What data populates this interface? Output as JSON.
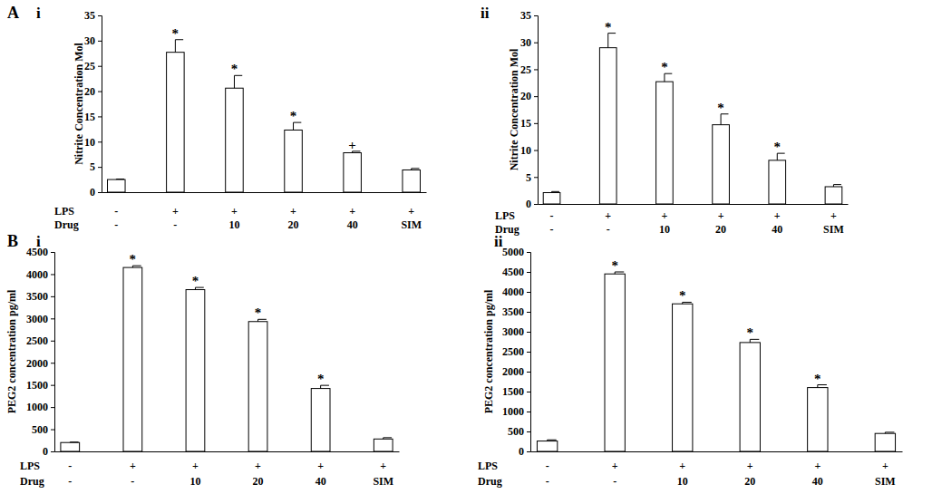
{
  "chart_data": [
    {
      "type": "bar",
      "panel_label": "A",
      "title": "i",
      "ylabel": "Nitrite Concentration Mol",
      "color": "#ffffff",
      "values": [
        2.5,
        27.7,
        20.6,
        12.3,
        7.8,
        4.4
      ],
      "errors": [
        0.1,
        2.5,
        2.5,
        1.5,
        0.3,
        0.3
      ],
      "significance": [
        null,
        "*",
        "*",
        "*",
        "+",
        null
      ],
      "condition_rows": [
        {
          "name": "LPS",
          "labels": [
            "-",
            "+",
            "+",
            "+",
            "+",
            "+"
          ]
        },
        {
          "name": "Drug",
          "labels": [
            "-",
            "-",
            "10",
            "20",
            "40",
            "SIM"
          ]
        }
      ],
      "ylim": [
        0,
        35
      ],
      "yticks": [
        0,
        5,
        10,
        15,
        20,
        25,
        30,
        35
      ]
    },
    {
      "type": "bar",
      "title": "ii",
      "ylabel": "Nitrite Concentration Mol",
      "color": "#ffffff",
      "values": [
        2.1,
        29.0,
        22.7,
        14.7,
        8.1,
        3.2
      ],
      "errors": [
        0.2,
        2.7,
        1.5,
        2.0,
        1.3,
        0.4
      ],
      "significance": [
        null,
        "*",
        "*",
        "*",
        "*",
        null
      ],
      "condition_rows": [
        {
          "name": "LPS",
          "labels": [
            "-",
            "+",
            "+",
            "+",
            "+",
            "+"
          ]
        },
        {
          "name": "Drug",
          "labels": [
            "-",
            "-",
            "10",
            "20",
            "40",
            "SIM"
          ]
        }
      ],
      "ylim": [
        0,
        35
      ],
      "yticks": [
        0,
        5,
        10,
        15,
        20,
        25,
        30,
        35
      ]
    },
    {
      "type": "bar",
      "panel_label": "B",
      "title": "i",
      "ylabel": "PEG2 concentration pg/ml",
      "color": "#ffffff",
      "values": [
        200,
        4150,
        3650,
        2930,
        1420,
        280
      ],
      "errors": [
        10,
        40,
        50,
        50,
        70,
        30
      ],
      "significance": [
        null,
        "*",
        "*",
        "*",
        "*",
        null
      ],
      "condition_rows": [
        {
          "name": "LPS",
          "labels": [
            "-",
            "+",
            "+",
            "+",
            "+",
            "+"
          ]
        },
        {
          "name": "Drug",
          "labels": [
            "-",
            "-",
            "10",
            "20",
            "40",
            "SIM"
          ]
        }
      ],
      "ylim": [
        0,
        4500
      ],
      "yticks": [
        0,
        500,
        1000,
        1500,
        2000,
        2500,
        3000,
        3500,
        4000,
        4500
      ]
    },
    {
      "type": "bar",
      "title": "ii",
      "ylabel": "PEG2 concentration pg/ml",
      "color": "#ffffff",
      "values": [
        260,
        4450,
        3700,
        2730,
        1600,
        450
      ],
      "errors": [
        30,
        50,
        40,
        80,
        70,
        30
      ],
      "significance": [
        null,
        "*",
        "*",
        "*",
        "*",
        null
      ],
      "condition_rows": [
        {
          "name": "LPS",
          "labels": [
            "-",
            "+",
            "+",
            "+",
            "+",
            "+"
          ]
        },
        {
          "name": "Drug",
          "labels": [
            "-",
            "-",
            "10",
            "20",
            "40",
            "SIM"
          ]
        }
      ],
      "ylim": [
        0,
        5000
      ],
      "yticks": [
        0,
        500,
        1000,
        1500,
        2000,
        2500,
        3000,
        3500,
        4000,
        4500,
        5000
      ]
    }
  ]
}
